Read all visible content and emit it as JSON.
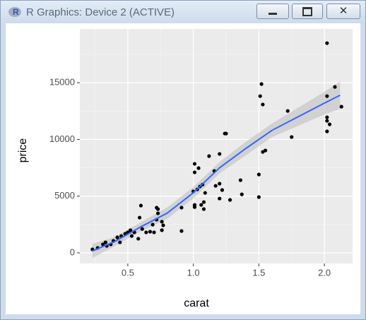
{
  "window": {
    "title": "R Graphics: Device 2 (ACTIVE)"
  },
  "chart_data": {
    "type": "scatter",
    "x_label": "carat",
    "y_label": "price",
    "xlim": [
      0.134,
      2.215
    ],
    "ylim": [
      -934,
      19738
    ],
    "xticks": [
      0.5,
      {
        "value": 1,
        "label": "1.0"
      },
      1.5,
      {
        "value": 2,
        "label": "2.0"
      }
    ],
    "yticks": [
      0,
      5000,
      10000,
      15000
    ],
    "minor_xticks": [
      0.25,
      0.75,
      1.25,
      1.75
    ],
    "minor_yticks": [
      2500,
      7500,
      12500,
      17500
    ],
    "grid": true,
    "color": "#000000",
    "x": [
      0.23,
      0.27,
      0.31,
      0.33,
      0.34,
      0.37,
      0.39,
      0.42,
      0.44,
      0.45,
      0.48,
      0.5,
      0.52,
      0.53,
      0.55,
      0.58,
      0.59,
      0.6,
      0.61,
      0.64,
      0.67,
      0.69,
      0.7,
      0.72,
      0.72,
      0.73,
      0.73,
      0.76,
      0.76,
      0.77,
      0.91,
      0.91,
      1.01,
      1.01,
      1.0,
      1.03,
      1.04,
      1.05,
      1.06,
      1.07,
      1.08,
      1.08,
      1.09,
      1.01,
      1.01,
      1.12,
      1.16,
      1.17,
      1.2,
      1.2,
      1.2,
      1.22,
      1.24,
      1.25,
      1.28,
      1.36,
      1.37,
      1.5,
      1.5,
      1.51,
      1.52,
      1.53,
      1.53,
      1.55,
      1.72,
      1.75,
      2.02,
      2.02,
      2.02,
      2.02,
      2.02,
      2.04,
      2.08,
      2.13
    ],
    "values": [
      310,
      440,
      750,
      930,
      620,
      750,
      1060,
      1370,
      930,
      1490,
      1680,
      1810,
      2000,
      1490,
      1810,
      1250,
      3110,
      4170,
      2110,
      1810,
      1870,
      2490,
      1810,
      3990,
      2930,
      3860,
      3490,
      2750,
      2000,
      2430,
      3990,
      1930,
      7850,
      7100,
      5420,
      5600,
      7470,
      5850,
      4230,
      6020,
      3860,
      4480,
      5290,
      4230,
      4040,
      8530,
      7220,
      5910,
      8720,
      6100,
      4790,
      5540,
      10520,
      10520,
      4670,
      6410,
      5160,
      6910,
      4920,
      13820,
      14880,
      13080,
      8900,
      9030,
      12510,
      10210,
      18490,
      13820,
      11950,
      11640,
      10710,
      11330,
      14630,
      12890
    ],
    "smooth": {
      "color": "#3366ff",
      "band_color": "#c0c0c0",
      "x": [
        0.23,
        0.4,
        0.6,
        0.8,
        1.0,
        1.2,
        1.4,
        1.6,
        1.8,
        2.0,
        2.12
      ],
      "values": [
        170,
        1000,
        2300,
        3500,
        5300,
        7500,
        9200,
        10800,
        12000,
        13200,
        13900
      ],
      "lower": [
        -450,
        600,
        1900,
        3000,
        4800,
        7000,
        8600,
        10200,
        11200,
        12200,
        12700
      ],
      "upper": [
        790,
        1400,
        2700,
        4000,
        5800,
        8000,
        9800,
        11400,
        12800,
        14200,
        15100
      ]
    }
  }
}
